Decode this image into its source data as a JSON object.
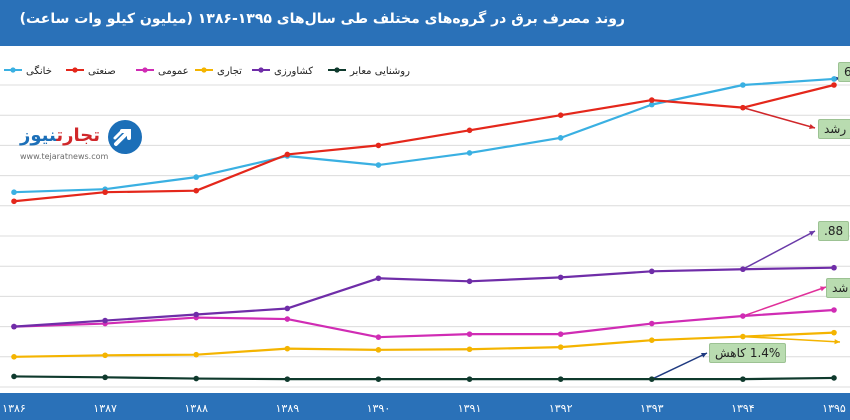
{
  "title": "روند مصرف برق در گروه‌های مختلف طی سال‌های ۱۳۹۵-۱۳۸۶ (میلیون کیلو وات ساعت)",
  "logo": {
    "text_red": "تجارت",
    "text_blue": "نیوز",
    "url": "www.tejaratnews.com"
  },
  "callouts": {
    "c1": "6",
    "c2": "رشد",
    "c3": "88.",
    "c4": "شد",
    "c5": "1.4% کاهش"
  },
  "colors": {
    "header": "#2a71b8",
    "callout_bg": "#b9dcb0",
    "arrow_blue": "#1f3a80",
    "arrow_red": "#d0272a",
    "arrow_pink": "#e0309a",
    "arrow_orange": "#f4b400",
    "arrow_purple": "#6a3aa8"
  },
  "chart_data": {
    "type": "line",
    "categories": [
      "۱۳۸۶",
      "۱۳۸۷",
      "۱۳۸۸",
      "۱۳۸۹",
      "۱۳۹۰",
      "۱۳۹۱",
      "۱۳۹۲",
      "۱۳۹۳",
      "۱۳۹۴",
      "۱۳۹۵"
    ],
    "legend_position": "top-left",
    "grid": true,
    "y_axis_visible": false,
    "ylim": [
      0,
      100
    ],
    "series": [
      {
        "name": "خانگی",
        "color": "#3ab0e2",
        "values": [
          64.5,
          65.5,
          69.5,
          76.5,
          73.5,
          77.5,
          82.5,
          93.5,
          100.0,
          102.0
        ]
      },
      {
        "name": "صنعتی",
        "color": "#e4271b",
        "values": [
          61.5,
          64.5,
          65.0,
          77.0,
          80.0,
          85.0,
          90.0,
          95.0,
          92.5,
          100.0
        ]
      },
      {
        "name": "عمومی",
        "color": "#d02cb4",
        "values": [
          20.0,
          21.0,
          23.0,
          22.5,
          16.5,
          17.5,
          17.5,
          21.0,
          23.5,
          25.5
        ]
      },
      {
        "name": "تجاری",
        "color": "#f4b400",
        "values": [
          10.0,
          10.5,
          10.7,
          12.7,
          12.3,
          12.5,
          13.2,
          15.5,
          16.7,
          18.0
        ]
      },
      {
        "name": "کشاورزی",
        "color": "#6f2da8",
        "values": [
          20.0,
          22.0,
          24.0,
          26.0,
          36.0,
          35.0,
          36.3,
          38.3,
          39.0,
          39.5
        ]
      },
      {
        "name": "روشنایی معابر",
        "color": "#0f3a2d",
        "values": [
          3.5,
          3.2,
          2.8,
          2.6,
          2.6,
          2.6,
          2.6,
          2.6,
          2.6,
          3.0
        ]
      }
    ]
  }
}
